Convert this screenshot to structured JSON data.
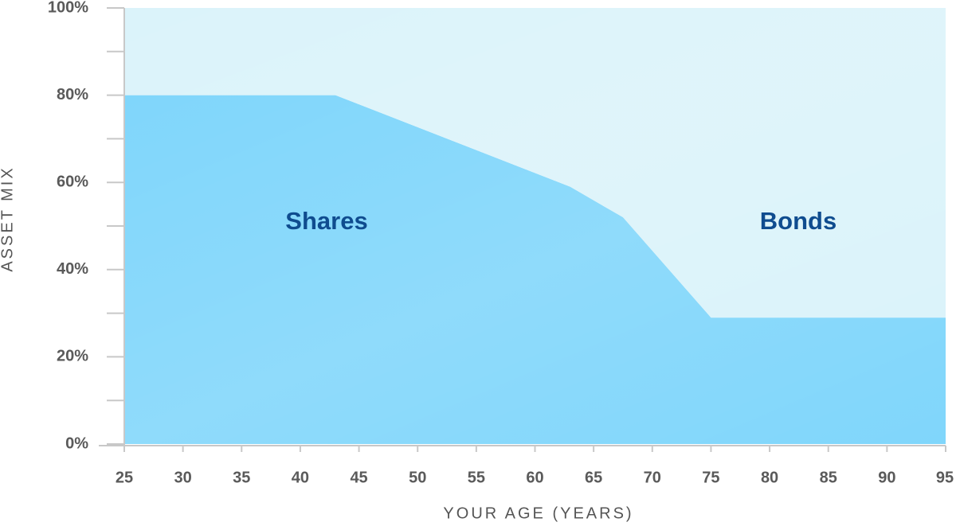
{
  "chart_data": {
    "type": "stacked-area",
    "x_label": "YOUR AGE (YEARS)",
    "y_label": "ASSET MIX",
    "x": [
      25,
      43,
      63,
      67.5,
      75,
      95
    ],
    "series": [
      {
        "name": "Shares",
        "color": "#80d6fb",
        "values": [
          80,
          80,
          59,
          52,
          29,
          29
        ]
      },
      {
        "name": "Bonds",
        "color": "#dbf3fa",
        "values": [
          20,
          20,
          41,
          48,
          71,
          71
        ]
      }
    ],
    "xlim": [
      25,
      95
    ],
    "xticks": [
      25,
      30,
      35,
      40,
      45,
      50,
      55,
      60,
      65,
      70,
      75,
      80,
      85,
      90,
      95
    ],
    "ylim": [
      0,
      100
    ],
    "yticks": [
      {
        "value": 0,
        "label": "0%"
      },
      {
        "value": 20,
        "label": "20%"
      },
      {
        "value": 40,
        "label": "40%"
      },
      {
        "value": 60,
        "label": "60%"
      },
      {
        "value": 80,
        "label": "80%"
      },
      {
        "value": 100,
        "label": "100%"
      }
    ],
    "yminorticks": [
      10,
      30,
      50,
      70,
      90
    ]
  }
}
